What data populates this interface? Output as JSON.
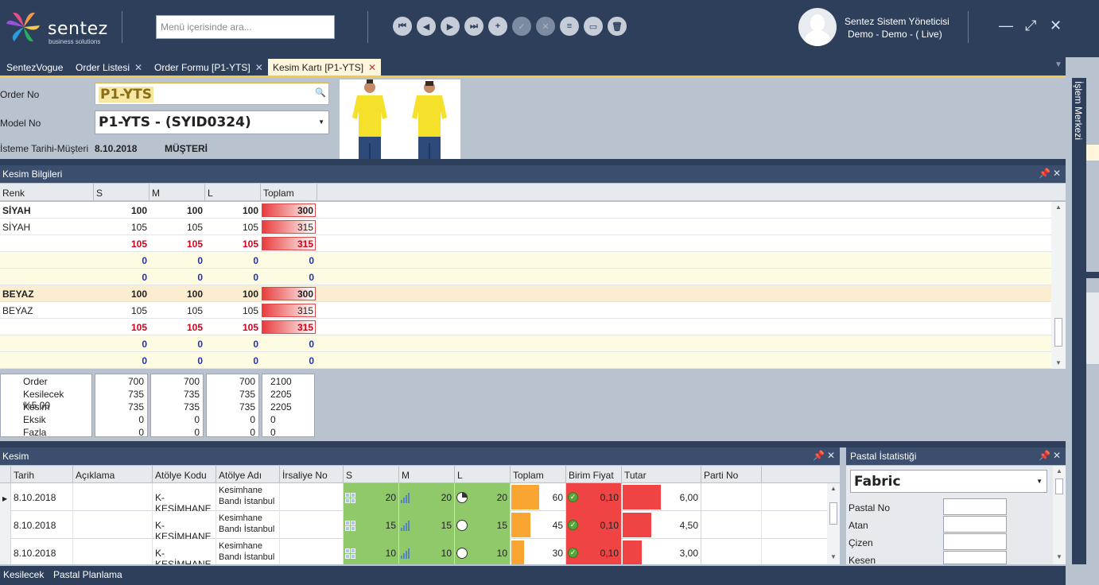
{
  "header": {
    "brand": "sentez",
    "brand_sub": "business solutions",
    "search_placeholder": "Menü içerisinde ara...",
    "user_name": "Sentez Sistem Yöneticisi",
    "user_context": "Demo - Demo - ( Live)",
    "nav_buttons": [
      "first-icon",
      "prev-icon",
      "next-icon",
      "last-icon",
      "add-icon",
      "approve-icon",
      "cancel-icon",
      "list-icon",
      "form-icon",
      "delete-icon"
    ]
  },
  "tabs": [
    {
      "label": "SentezVogue",
      "closable": false
    },
    {
      "label": "Order Listesi",
      "closable": true
    },
    {
      "label": "Order Formu [P1-YTS]",
      "closable": true
    },
    {
      "label": "Kesim Kartı [P1-YTS]",
      "closable": true,
      "active": true
    }
  ],
  "order": {
    "order_no_label": "Order No",
    "order_no": "P1-YTS",
    "model_no_label": "Model No",
    "model_no": "P1-YTS - (SYID0324)",
    "date_label": "İsteme Tarihi-Müşteri",
    "date": "8.10.2018",
    "customer": "MÜŞTERİ"
  },
  "kesim_bilgileri": {
    "title": "Kesim Bilgileri",
    "columns": [
      "Renk",
      "S",
      "M",
      "L",
      "Toplam"
    ],
    "rows": [
      {
        "renk": "SİYAH",
        "s": "100",
        "m": "100",
        "l": "100",
        "toplam": "300",
        "style": "bold",
        "bg": "#ffffff",
        "bar": true
      },
      {
        "renk": "SİYAH",
        "s": "105",
        "m": "105",
        "l": "105",
        "toplam": "315",
        "style": "normal",
        "bg": "#ffffff",
        "bar": true
      },
      {
        "renk": "",
        "s": "105",
        "m": "105",
        "l": "105",
        "toplam": "315",
        "style": "red",
        "bg": "#ffffff",
        "bar": true
      },
      {
        "renk": "",
        "s": "0",
        "m": "0",
        "l": "0",
        "toplam": "0",
        "style": "blue",
        "bg": "#fefbe3",
        "bar": false
      },
      {
        "renk": "",
        "s": "0",
        "m": "0",
        "l": "0",
        "toplam": "0",
        "style": "blue",
        "bg": "#fefbe3",
        "bar": false
      },
      {
        "renk": "BEYAZ",
        "s": "100",
        "m": "100",
        "l": "100",
        "toplam": "300",
        "style": "bold",
        "bg": "#fbeed0",
        "bar": true
      },
      {
        "renk": "BEYAZ",
        "s": "105",
        "m": "105",
        "l": "105",
        "toplam": "315",
        "style": "normal",
        "bg": "#ffffff",
        "bar": true
      },
      {
        "renk": "",
        "s": "105",
        "m": "105",
        "l": "105",
        "toplam": "315",
        "style": "red",
        "bg": "#ffffff",
        "bar": true
      },
      {
        "renk": "",
        "s": "0",
        "m": "0",
        "l": "0",
        "toplam": "0",
        "style": "blue",
        "bg": "#fefbe3",
        "bar": false
      },
      {
        "renk": "",
        "s": "0",
        "m": "0",
        "l": "0",
        "toplam": "0",
        "style": "blue",
        "bg": "#fefbe3",
        "bar": false
      }
    ],
    "summary_labels": [
      "Order",
      "Kesilecek %5,00",
      "Kesim",
      "Eksik",
      "Fazla"
    ],
    "summary": {
      "s": [
        "700",
        "735",
        "735",
        "0",
        "0"
      ],
      "m": [
        "700",
        "735",
        "735",
        "0",
        "0"
      ],
      "l": [
        "700",
        "735",
        "735",
        "0",
        "0"
      ],
      "toplam": [
        "2100",
        "2205",
        "2205",
        "0",
        "0"
      ]
    }
  },
  "kesim": {
    "title": "Kesim",
    "columns": [
      "Tarih",
      "Açıklama",
      "Atölye Kodu",
      "Atölye Adı",
      "İrsaliye No",
      "S",
      "M",
      "L",
      "Toplam",
      "Birim Fiyat",
      "Tutar",
      "Parti No"
    ],
    "rows": [
      {
        "tarih": "8.10.2018",
        "aciklama": "",
        "kod": "K-KESİMHANE",
        "ad1": "Kesimhane",
        "ad2": "Bandı İstanbul",
        "irsaliye": "",
        "s": "20",
        "m": "20",
        "l": "20",
        "toplam": "60",
        "toplam_ratio": 0.55,
        "fiyat": "0,10",
        "tutar": "6,00",
        "tutar_ratio": 0.65,
        "parti": "",
        "pie": "quarter"
      },
      {
        "tarih": "8.10.2018",
        "aciklama": "",
        "kod": "K-KESİMHANE",
        "ad1": "Kesimhane",
        "ad2": "Bandı İstanbul",
        "irsaliye": "",
        "s": "15",
        "m": "15",
        "l": "15",
        "toplam": "45",
        "toplam_ratio": 0.38,
        "fiyat": "0,10",
        "tutar": "4,50",
        "tutar_ratio": 0.48,
        "parti": "",
        "pie": "empty"
      },
      {
        "tarih": "8.10.2018",
        "aciklama": "",
        "kod": "K-KESİMHANE",
        "ad1": "Kesimhane",
        "ad2": "Bandı İstanbul",
        "irsaliye": "",
        "s": "10",
        "m": "10",
        "l": "10",
        "toplam": "30",
        "toplam_ratio": 0.25,
        "fiyat": "0,10",
        "tutar": "3,00",
        "tutar_ratio": 0.32,
        "parti": "",
        "pie": "empty"
      }
    ]
  },
  "pastal": {
    "title": "Pastal İstatistiği",
    "select_value": "Fabric",
    "fields": [
      "Pastal No",
      "Atan",
      "Çizen",
      "Kesen"
    ]
  },
  "side_panel": "İşlem Merkezi",
  "bottom_tabs": [
    "Kesilecek",
    "Pastal Planlama"
  ],
  "colors": {
    "navy": "#2e3f5c",
    "accent": "#f2c94c",
    "red": "#d0021b",
    "blue": "#1f2fbf",
    "green": "#8fc96a"
  }
}
